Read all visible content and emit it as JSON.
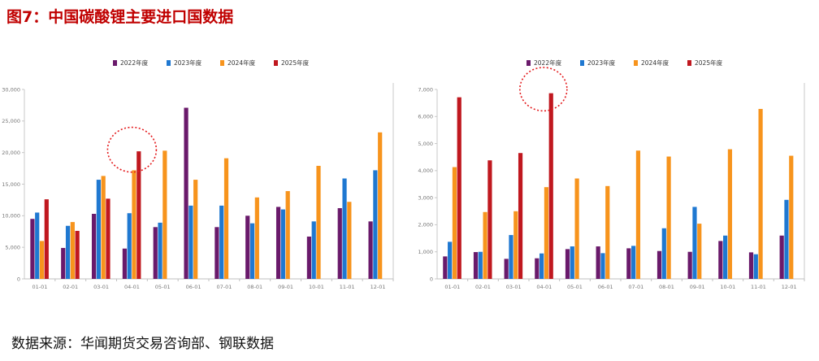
{
  "figure_title": "图7：中国碳酸锂主要进口国数据",
  "source_note": "数据来源：华闻期货交易咨询部、钢联数据",
  "colors": {
    "2022年度": "#6a1a6b",
    "2023年度": "#1f78d1",
    "2024年度": "#f7941d",
    "2025年度": "#c0181f",
    "title": "#c00000",
    "highlight_circle": "#e3191b"
  },
  "chart_data": [
    {
      "type": "bar",
      "categories": [
        "01-01",
        "02-01",
        "03-01",
        "04-01",
        "05-01",
        "06-01",
        "07-01",
        "08-01",
        "09-01",
        "10-01",
        "11-01",
        "12-01"
      ],
      "ylim": [
        0,
        30000
      ],
      "yticks": [
        "0",
        "5,000",
        "10,000",
        "15,000",
        "20,000",
        "25,000",
        "30,000"
      ],
      "ytick_values": [
        0,
        5000,
        10000,
        15000,
        20000,
        25000,
        30000
      ],
      "legend_position": "top-center",
      "highlight_category": "04-01",
      "series": [
        {
          "name": "2022年度",
          "values": [
            9500,
            4900,
            10300,
            4800,
            8200,
            27100,
            8200,
            10000,
            11400,
            6700,
            11200,
            9100
          ]
        },
        {
          "name": "2023年度",
          "values": [
            10500,
            8400,
            15700,
            10400,
            8900,
            11600,
            11600,
            8800,
            11000,
            9100,
            15900,
            17200
          ]
        },
        {
          "name": "2024年度",
          "values": [
            6000,
            9000,
            16300,
            17200,
            20300,
            15700,
            19100,
            12900,
            13900,
            17900,
            12200,
            23200
          ]
        },
        {
          "name": "2025年度",
          "values": [
            12600,
            7600,
            12700,
            20200,
            null,
            null,
            null,
            null,
            null,
            null,
            null,
            null
          ]
        }
      ]
    },
    {
      "type": "bar",
      "categories": [
        "01-01",
        "02-01",
        "03-01",
        "04-01",
        "05-01",
        "06-01",
        "07-01",
        "08-01",
        "09-01",
        "10-01",
        "11-01",
        "12-01"
      ],
      "ylim": [
        0,
        7000
      ],
      "yticks": [
        "0",
        "1,000",
        "2,000",
        "3,000",
        "4,000",
        "5,000",
        "6,000",
        "7,000"
      ],
      "ytick_values": [
        0,
        1000,
        2000,
        3000,
        4000,
        5000,
        6000,
        7000
      ],
      "legend_position": "top-center",
      "highlight_category": "04-01",
      "series": [
        {
          "name": "2022年度",
          "values": [
            830,
            990,
            740,
            760,
            1100,
            1200,
            1130,
            1030,
            1000,
            1400,
            980,
            1600
          ]
        },
        {
          "name": "2023年度",
          "values": [
            1370,
            1000,
            1620,
            940,
            1200,
            950,
            1220,
            1870,
            2660,
            1600,
            910,
            2920
          ]
        },
        {
          "name": "2024年度",
          "values": [
            4130,
            2470,
            2500,
            3390,
            3710,
            3430,
            4740,
            4520,
            2040,
            4790,
            6280,
            4550
          ]
        },
        {
          "name": "2025年度",
          "values": [
            6710,
            4380,
            4650,
            6860,
            null,
            null,
            null,
            null,
            null,
            null,
            null,
            null
          ]
        }
      ]
    }
  ]
}
